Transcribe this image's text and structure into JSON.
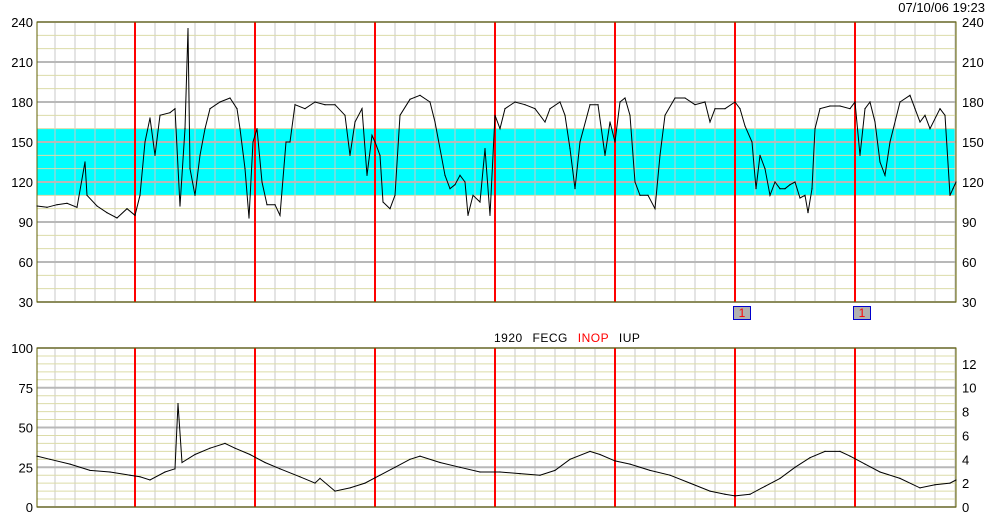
{
  "timestamp": "07/10/06 19:23",
  "trace_label": {
    "id": "1920",
    "mode": "FECG",
    "status": "INOP",
    "channel": "IUP"
  },
  "colors": {
    "normal_band": "#00ffff",
    "marker_lines": "#ff0000",
    "trace": "#000000",
    "status_inop": "#ff0000"
  },
  "event_markers": [
    {
      "label": "1",
      "x": 35
    },
    {
      "label": "1",
      "x": 41
    }
  ],
  "chart_data": [
    {
      "type": "line",
      "title": "",
      "ylabel": "",
      "ylim": [
        30,
        240
      ],
      "xlim": [
        0.1,
        46.05
      ],
      "yticks": [
        30,
        60,
        90,
        120,
        150,
        180,
        210,
        240
      ],
      "yticks_right": [
        30,
        60,
        90,
        120,
        150,
        180,
        210,
        240
      ],
      "band": [
        110,
        160
      ],
      "marker_lines_x": [
        5,
        11,
        17,
        23,
        29,
        35,
        41
      ],
      "grid": true,
      "points": [
        [
          0.1,
          102
        ],
        [
          0.6,
          101
        ],
        [
          1.1,
          103
        ],
        [
          1.6,
          104
        ],
        [
          2.1,
          101
        ],
        [
          2.5,
          135
        ],
        [
          2.6,
          110
        ],
        [
          3.1,
          102
        ],
        [
          3.6,
          97
        ],
        [
          4.1,
          93
        ],
        [
          4.6,
          100
        ],
        [
          5,
          95
        ],
        [
          5.25,
          110
        ],
        [
          5.5,
          150
        ],
        [
          5.75,
          168
        ],
        [
          6,
          140
        ],
        [
          6.25,
          170
        ],
        [
          6.75,
          172
        ],
        [
          7,
          175
        ],
        [
          7.25,
          102
        ],
        [
          7.5,
          160
        ],
        [
          7.65,
          235
        ],
        [
          7.75,
          130
        ],
        [
          8,
          110
        ],
        [
          8.25,
          140
        ],
        [
          8.5,
          160
        ],
        [
          8.75,
          175
        ],
        [
          9.25,
          180
        ],
        [
          9.75,
          183
        ],
        [
          10.1,
          175
        ],
        [
          10.25,
          160
        ],
        [
          10.5,
          130
        ],
        [
          10.7,
          93
        ],
        [
          10.9,
          150
        ],
        [
          11.1,
          160
        ],
        [
          11.35,
          120
        ],
        [
          11.6,
          103
        ],
        [
          12,
          103
        ],
        [
          12.25,
          95
        ],
        [
          12.55,
          150
        ],
        [
          12.75,
          150
        ],
        [
          13,
          178
        ],
        [
          13.5,
          175
        ],
        [
          14,
          180
        ],
        [
          14.5,
          178
        ],
        [
          15,
          178
        ],
        [
          15.5,
          170
        ],
        [
          15.75,
          140
        ],
        [
          16,
          165
        ],
        [
          16.35,
          175
        ],
        [
          16.6,
          125
        ],
        [
          16.85,
          155
        ],
        [
          17,
          150
        ],
        [
          17.25,
          140
        ],
        [
          17.4,
          105
        ],
        [
          17.75,
          100
        ],
        [
          18,
          110
        ],
        [
          18.25,
          170
        ],
        [
          18.75,
          182
        ],
        [
          19.25,
          185
        ],
        [
          19.75,
          180
        ],
        [
          20,
          165
        ],
        [
          20.5,
          125
        ],
        [
          20.75,
          115
        ],
        [
          21,
          118
        ],
        [
          21.25,
          125
        ],
        [
          21.5,
          120
        ],
        [
          21.65,
          95
        ],
        [
          21.9,
          110
        ],
        [
          22.25,
          105
        ],
        [
          22.5,
          145
        ],
        [
          22.75,
          95
        ],
        [
          23,
          170
        ],
        [
          23.25,
          160
        ],
        [
          23.5,
          175
        ],
        [
          24,
          180
        ],
        [
          24.5,
          178
        ],
        [
          25,
          175
        ],
        [
          25.5,
          165
        ],
        [
          25.75,
          175
        ],
        [
          26.25,
          180
        ],
        [
          26.5,
          170
        ],
        [
          26.75,
          145
        ],
        [
          27,
          115
        ],
        [
          27.25,
          150
        ],
        [
          27.75,
          178
        ],
        [
          28.15,
          178
        ],
        [
          28.5,
          140
        ],
        [
          28.75,
          165
        ],
        [
          29,
          150
        ],
        [
          29.25,
          180
        ],
        [
          29.5,
          183
        ],
        [
          29.75,
          170
        ],
        [
          30,
          120
        ],
        [
          30.25,
          110
        ],
        [
          30.65,
          110
        ],
        [
          31,
          100
        ],
        [
          31.25,
          140
        ],
        [
          31.5,
          170
        ],
        [
          32,
          183
        ],
        [
          32.5,
          183
        ],
        [
          33,
          178
        ],
        [
          33.5,
          180
        ],
        [
          33.75,
          165
        ],
        [
          34,
          175
        ],
        [
          34.5,
          175
        ],
        [
          35,
          180
        ],
        [
          35.25,
          175
        ],
        [
          35.5,
          162
        ],
        [
          35.85,
          150
        ],
        [
          36.05,
          115
        ],
        [
          36.25,
          140
        ],
        [
          36.5,
          130
        ],
        [
          36.75,
          110
        ],
        [
          37,
          120
        ],
        [
          37.25,
          115
        ],
        [
          37.5,
          115
        ],
        [
          37.75,
          118
        ],
        [
          38,
          120
        ],
        [
          38.25,
          108
        ],
        [
          38.5,
          110
        ],
        [
          38.65,
          97
        ],
        [
          38.85,
          115
        ],
        [
          39,
          160
        ],
        [
          39.25,
          175
        ],
        [
          39.75,
          177
        ],
        [
          40.25,
          177
        ],
        [
          40.75,
          175
        ],
        [
          41,
          180
        ],
        [
          41.25,
          140
        ],
        [
          41.5,
          175
        ],
        [
          41.75,
          180
        ],
        [
          42,
          165
        ],
        [
          42.25,
          135
        ],
        [
          42.5,
          125
        ],
        [
          42.75,
          150
        ],
        [
          43.25,
          180
        ],
        [
          43.75,
          185
        ],
        [
          44,
          175
        ],
        [
          44.25,
          165
        ],
        [
          44.5,
          170
        ],
        [
          44.75,
          160
        ],
        [
          45.25,
          175
        ],
        [
          45.5,
          170
        ],
        [
          45.75,
          110
        ],
        [
          45.9,
          115
        ],
        [
          46.05,
          120
        ]
      ]
    },
    {
      "type": "line",
      "title": "",
      "ylabel": "",
      "ylim": [
        0,
        100
      ],
      "ylim_right": [
        0,
        13.33
      ],
      "xlim": [
        0.1,
        46.05
      ],
      "yticks": [
        0,
        25,
        50,
        75,
        100
      ],
      "yticks_right": [
        0,
        2,
        4,
        6,
        8,
        10,
        12
      ],
      "marker_lines_x": [
        5,
        11,
        17,
        23,
        29,
        35,
        41
      ],
      "grid": true,
      "points": [
        [
          0.1,
          32
        ],
        [
          0.75,
          30
        ],
        [
          1.75,
          27
        ],
        [
          2.75,
          23
        ],
        [
          3.75,
          22
        ],
        [
          4.75,
          20
        ],
        [
          5.25,
          19
        ],
        [
          5.75,
          17
        ],
        [
          6.5,
          22
        ],
        [
          7,
          24
        ],
        [
          7.15,
          65
        ],
        [
          7.35,
          28
        ],
        [
          8,
          33
        ],
        [
          8.75,
          37
        ],
        [
          9.5,
          40
        ],
        [
          10,
          37
        ],
        [
          10.75,
          33
        ],
        [
          11.5,
          28
        ],
        [
          12.25,
          24
        ],
        [
          13.25,
          19
        ],
        [
          14,
          15
        ],
        [
          14.25,
          18
        ],
        [
          15,
          10
        ],
        [
          15.75,
          12
        ],
        [
          16.5,
          15
        ],
        [
          17.25,
          20
        ],
        [
          18,
          25
        ],
        [
          18.75,
          30
        ],
        [
          19.25,
          32
        ],
        [
          20.25,
          28
        ],
        [
          21.25,
          25
        ],
        [
          22.25,
          22
        ],
        [
          23.25,
          22
        ],
        [
          24.25,
          21
        ],
        [
          25.25,
          20
        ],
        [
          26,
          23
        ],
        [
          26.75,
          30
        ],
        [
          27.75,
          35
        ],
        [
          28.25,
          33
        ],
        [
          29,
          29
        ],
        [
          29.75,
          27
        ],
        [
          30.75,
          23
        ],
        [
          31.75,
          20
        ],
        [
          32.75,
          15
        ],
        [
          33.75,
          10
        ],
        [
          34.5,
          8
        ],
        [
          35,
          7
        ],
        [
          35.75,
          8
        ],
        [
          36.5,
          13
        ],
        [
          37.25,
          18
        ],
        [
          38,
          25
        ],
        [
          38.75,
          31
        ],
        [
          39.5,
          35
        ],
        [
          40.25,
          35
        ],
        [
          40.75,
          32
        ],
        [
          41.5,
          27
        ],
        [
          42.25,
          22
        ],
        [
          43.25,
          18
        ],
        [
          44.25,
          12
        ],
        [
          45,
          14
        ],
        [
          45.75,
          15
        ],
        [
          46.05,
          17
        ]
      ]
    }
  ]
}
